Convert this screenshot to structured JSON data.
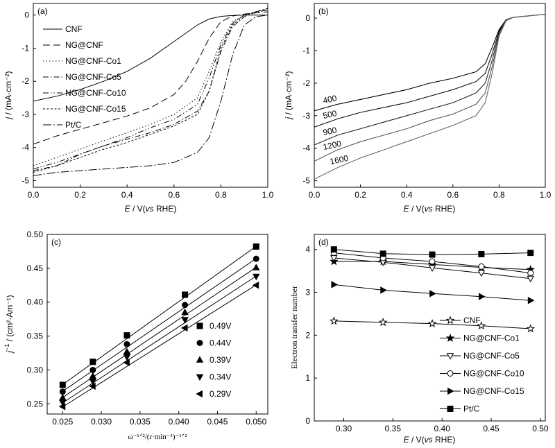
{
  "figure": {
    "panels": [
      "(a)",
      "(b)",
      "(c)",
      "(d)"
    ]
  },
  "chart_data": [
    {
      "panel": "(a)",
      "type": "line",
      "xlabel_parts": {
        "var": "E",
        "mid": " / V(",
        "vs": "vs",
        "end": " RHE)"
      },
      "ylabel_parts": {
        "var": "j",
        "end": " / (mA·cm⁻²)"
      },
      "xlim": [
        0.0,
        1.0
      ],
      "ylim": [
        -5.2,
        0.35
      ],
      "xticks": [
        "0.0",
        "0.2",
        "0.4",
        "0.6",
        "0.8",
        "1.0"
      ],
      "yticks": [
        "0",
        "-1",
        "-2",
        "-3",
        "-4",
        "-5"
      ],
      "grid": false,
      "legend_position": "top-left",
      "series": [
        {
          "name": "CNF",
          "dash": "solid",
          "x": [
            0.0,
            0.1,
            0.2,
            0.3,
            0.4,
            0.5,
            0.6,
            0.65,
            0.7,
            0.75,
            0.8,
            0.85,
            0.9,
            1.0
          ],
          "y": [
            -2.6,
            -2.45,
            -2.25,
            -2.0,
            -1.7,
            -1.3,
            -0.8,
            -0.55,
            -0.3,
            -0.12,
            -0.04,
            -0.01,
            0.0,
            0.0
          ]
        },
        {
          "name": "NG@CNF",
          "dash": "long-dash",
          "x": [
            0.0,
            0.1,
            0.2,
            0.3,
            0.4,
            0.5,
            0.6,
            0.65,
            0.7,
            0.75,
            0.8,
            0.85,
            0.9,
            1.0
          ],
          "y": [
            -3.9,
            -3.65,
            -3.45,
            -3.25,
            -3.05,
            -2.8,
            -2.4,
            -2.0,
            -1.4,
            -0.7,
            -0.2,
            -0.03,
            0.03,
            0.1
          ]
        },
        {
          "name": "NG@CNF-Co1",
          "dash": "dot",
          "x": [
            0.0,
            0.1,
            0.2,
            0.3,
            0.4,
            0.5,
            0.6,
            0.7,
            0.75,
            0.8,
            0.85,
            0.9,
            1.0
          ],
          "y": [
            -4.55,
            -4.3,
            -4.05,
            -3.8,
            -3.55,
            -3.3,
            -3.0,
            -2.5,
            -1.7,
            -0.8,
            -0.2,
            0.0,
            0.15
          ]
        },
        {
          "name": "NG@CNF-Co5",
          "dash": "dash-dot",
          "x": [
            0.0,
            0.1,
            0.2,
            0.3,
            0.4,
            0.5,
            0.6,
            0.7,
            0.75,
            0.8,
            0.85,
            0.9,
            0.95,
            1.0
          ],
          "y": [
            -4.7,
            -4.55,
            -4.2,
            -3.95,
            -3.75,
            -3.55,
            -3.3,
            -2.9,
            -2.3,
            -1.1,
            -0.35,
            -0.05,
            0.1,
            0.15
          ]
        },
        {
          "name": "NG@CNF-Co10",
          "dash": "dash-dot-dot",
          "x": [
            0.0,
            0.1,
            0.2,
            0.3,
            0.4,
            0.5,
            0.6,
            0.7,
            0.75,
            0.8,
            0.85,
            0.9,
            1.0
          ],
          "y": [
            -4.65,
            -4.45,
            -4.2,
            -3.95,
            -3.7,
            -3.4,
            -3.15,
            -2.7,
            -1.9,
            -0.9,
            -0.25,
            0.0,
            0.2
          ]
        },
        {
          "name": "NG@CNF-Co15",
          "dash": "short-dash",
          "x": [
            0.0,
            0.1,
            0.2,
            0.3,
            0.4,
            0.5,
            0.6,
            0.7,
            0.75,
            0.8,
            0.85,
            0.9,
            1.0
          ],
          "y": [
            -4.75,
            -4.55,
            -4.3,
            -4.05,
            -3.85,
            -3.6,
            -3.35,
            -3.0,
            -2.3,
            -1.0,
            -0.3,
            0.0,
            0.2
          ]
        },
        {
          "name": "Pt/C",
          "dash": "dash-dot-long",
          "x": [
            0.0,
            0.1,
            0.2,
            0.3,
            0.4,
            0.5,
            0.6,
            0.7,
            0.75,
            0.8,
            0.85,
            0.9,
            0.95,
            1.0
          ],
          "y": [
            -4.85,
            -4.75,
            -4.7,
            -4.65,
            -4.6,
            -4.55,
            -4.45,
            -4.15,
            -3.7,
            -2.6,
            -1.2,
            -0.3,
            -0.05,
            0.0
          ]
        }
      ]
    },
    {
      "panel": "(b)",
      "type": "line",
      "xlabel_parts": {
        "var": "E",
        "mid": " / V(",
        "vs": "vs",
        "end": " RHE)"
      },
      "ylabel_parts": {
        "var": "j",
        "end": " / (mA·cm⁻²)"
      },
      "xlim": [
        0.0,
        1.0
      ],
      "ylim": [
        -5.2,
        0.45
      ],
      "xticks": [
        "0.0",
        "0.2",
        "0.4",
        "0.6",
        "0.8",
        "1.0"
      ],
      "yticks": [
        "0",
        "-1",
        "-2",
        "-3",
        "-4",
        "-5"
      ],
      "grid": false,
      "legend_position": "inline-left",
      "series": [
        {
          "name": "400",
          "color": "#000000",
          "x": [
            0.0,
            0.1,
            0.2,
            0.3,
            0.4,
            0.5,
            0.6,
            0.7,
            0.74,
            0.77,
            0.8,
            0.83,
            0.86,
            0.9,
            1.0
          ],
          "y": [
            -2.85,
            -2.65,
            -2.5,
            -2.35,
            -2.2,
            -2.0,
            -1.85,
            -1.65,
            -1.4,
            -0.9,
            -0.35,
            -0.05,
            0.02,
            0.05,
            0.12
          ]
        },
        {
          "name": "500",
          "color": "#111111",
          "x": [
            0.0,
            0.1,
            0.2,
            0.3,
            0.4,
            0.5,
            0.6,
            0.7,
            0.74,
            0.77,
            0.8,
            0.83,
            0.86,
            0.9,
            1.0
          ],
          "y": [
            -3.35,
            -3.1,
            -2.9,
            -2.75,
            -2.6,
            -2.4,
            -2.2,
            -1.95,
            -1.7,
            -1.1,
            -0.4,
            -0.05,
            0.02,
            0.05,
            0.12
          ]
        },
        {
          "name": "900",
          "color": "#222222",
          "x": [
            0.0,
            0.1,
            0.2,
            0.3,
            0.4,
            0.5,
            0.6,
            0.7,
            0.74,
            0.77,
            0.8,
            0.83,
            0.86,
            0.9,
            1.0
          ],
          "y": [
            -3.9,
            -3.6,
            -3.4,
            -3.2,
            -3.0,
            -2.8,
            -2.6,
            -2.3,
            -2.0,
            -1.3,
            -0.45,
            -0.06,
            0.02,
            0.05,
            0.12
          ]
        },
        {
          "name": "1200",
          "color": "#555555",
          "x": [
            0.0,
            0.1,
            0.2,
            0.3,
            0.4,
            0.5,
            0.6,
            0.7,
            0.74,
            0.77,
            0.8,
            0.83,
            0.86,
            0.9,
            1.0
          ],
          "y": [
            -4.4,
            -4.05,
            -3.8,
            -3.6,
            -3.4,
            -3.15,
            -2.95,
            -2.65,
            -2.3,
            -1.5,
            -0.5,
            -0.07,
            0.02,
            0.05,
            0.12
          ]
        },
        {
          "name": "1600",
          "color": "#666666",
          "x": [
            0.0,
            0.1,
            0.2,
            0.3,
            0.4,
            0.5,
            0.6,
            0.7,
            0.74,
            0.77,
            0.8,
            0.83,
            0.86,
            0.9,
            1.0
          ],
          "y": [
            -4.95,
            -4.6,
            -4.3,
            -4.05,
            -3.8,
            -3.55,
            -3.3,
            -3.0,
            -2.6,
            -1.7,
            -0.55,
            -0.08,
            0.02,
            0.05,
            0.12
          ]
        }
      ]
    },
    {
      "panel": "(c)",
      "type": "scatter",
      "xlabel": "ω⁻¹ᐟ²/(r·min⁻¹)⁻¹ᐟ²",
      "ylabel_parts": {
        "base": "j",
        "sup": "−1",
        "end": " / (cm²·Am⁻¹)"
      },
      "xlim": [
        0.023,
        0.0515
      ],
      "ylim": [
        0.235,
        0.5
      ],
      "xticks": [
        "0.025",
        "0.030",
        "0.035",
        "0.040",
        "0.045",
        "0.050"
      ],
      "xtick_values": [
        0.025,
        0.03,
        0.035,
        0.04,
        0.045,
        0.05
      ],
      "yticks": [
        "0.25",
        "0.30",
        "0.35",
        "0.40",
        "0.45",
        "0.50"
      ],
      "ytick_values": [
        0.25,
        0.3,
        0.35,
        0.4,
        0.45,
        0.5
      ],
      "grid": false,
      "legend_position": "right",
      "x": [
        0.025,
        0.0289,
        0.0333,
        0.0408,
        0.05
      ],
      "series": [
        {
          "name": "0.49V",
          "marker": "square",
          "y": [
            0.278,
            0.312,
            0.351,
            0.411,
            0.482
          ],
          "fit": [
            0.2785,
            0.4825
          ]
        },
        {
          "name": "0.44V",
          "marker": "circle",
          "y": [
            0.268,
            0.3,
            0.338,
            0.396,
            0.464
          ],
          "fit": [
            0.2685,
            0.4645
          ]
        },
        {
          "name": "0.39V",
          "marker": "triangle-up",
          "y": [
            0.259,
            0.291,
            0.327,
            0.385,
            0.451
          ],
          "fit": [
            0.2595,
            0.4515
          ]
        },
        {
          "name": "0.34V",
          "marker": "triangle-down",
          "y": [
            0.252,
            0.283,
            0.319,
            0.374,
            0.438
          ],
          "fit": [
            0.2515,
            0.4385
          ]
        },
        {
          "name": "0.29V",
          "marker": "triangle-left",
          "y": [
            0.246,
            0.276,
            0.311,
            0.362,
            0.425
          ],
          "fit": [
            0.2455,
            0.4255
          ]
        }
      ]
    },
    {
      "panel": "(d)",
      "type": "line",
      "xlabel_parts": {
        "var": "E",
        "mid": " / V(",
        "vs": "vs",
        "end": " RHE)"
      },
      "ylabel": "Electron transfer number",
      "xlim": [
        0.27,
        0.505
      ],
      "ylim": [
        0,
        4.35
      ],
      "xticks": [
        "0.30",
        "0.35",
        "0.40",
        "0.45",
        "0.50"
      ],
      "xtick_values": [
        0.3,
        0.35,
        0.4,
        0.45,
        0.5
      ],
      "yticks": [
        "0",
        "1",
        "2",
        "3",
        "4"
      ],
      "ytick_values": [
        0,
        1,
        2,
        3,
        4
      ],
      "grid": false,
      "legend_position": "bottom-right",
      "x": [
        0.29,
        0.34,
        0.39,
        0.44,
        0.49
      ],
      "series": [
        {
          "name": "CNF",
          "marker": "star-open",
          "y": [
            2.33,
            2.3,
            2.27,
            2.22,
            2.15
          ]
        },
        {
          "name": "NG@CNF-Co1",
          "marker": "star-filled",
          "y": [
            3.72,
            3.72,
            3.65,
            3.58,
            3.53
          ]
        },
        {
          "name": "NG@CNF-Co5",
          "marker": "triangle-down-open",
          "y": [
            3.8,
            3.7,
            3.57,
            3.45,
            3.32
          ]
        },
        {
          "name": "NG@CNF-Co10",
          "marker": "circle-open",
          "y": [
            3.92,
            3.8,
            3.72,
            3.6,
            3.45
          ]
        },
        {
          "name": "NG@CNF-Co15",
          "marker": "triangle-right-filled",
          "y": [
            3.18,
            3.05,
            2.97,
            2.9,
            2.81
          ]
        },
        {
          "name": "Pt/C",
          "marker": "square-filled",
          "y": [
            4.0,
            3.9,
            3.88,
            3.89,
            3.92
          ]
        }
      ]
    }
  ]
}
